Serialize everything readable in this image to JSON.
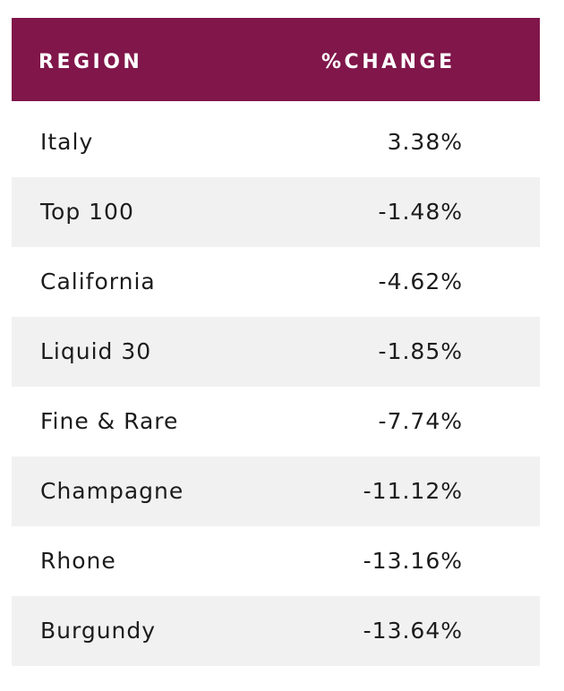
{
  "colors": {
    "header_background": "#80164a",
    "header_text": "#ffffff",
    "row_shade": "#f1f1f1",
    "body_text": "#1c1c1c"
  },
  "chart_data": {
    "type": "table",
    "columns": [
      "REGION",
      "%CHANGE"
    ],
    "rows": [
      {
        "region": "Italy",
        "change": "3.38%"
      },
      {
        "region": "Top 100",
        "change": "-1.48%"
      },
      {
        "region": "California",
        "change": "-4.62%"
      },
      {
        "region": "Liquid 30",
        "change": "-1.85%"
      },
      {
        "region": "Fine & Rare",
        "change": "-7.74%"
      },
      {
        "region": "Champagne",
        "change": "-11.12%"
      },
      {
        "region": "Rhone",
        "change": "-13.16%"
      },
      {
        "region": "Burgundy",
        "change": "-13.64%"
      }
    ]
  }
}
